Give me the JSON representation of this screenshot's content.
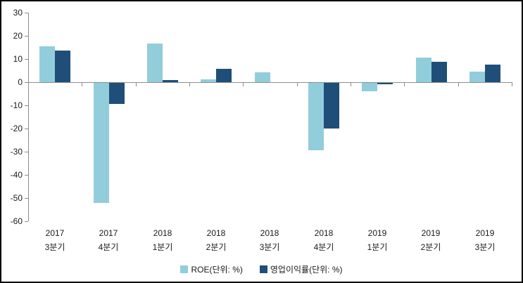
{
  "chart_data": {
    "type": "bar",
    "title": "",
    "xlabel": "",
    "ylabel": "",
    "categories": [
      {
        "line1": "2017",
        "line2": "3분기"
      },
      {
        "line1": "2017",
        "line2": "4분기"
      },
      {
        "line1": "2018",
        "line2": "1분기"
      },
      {
        "line1": "2018",
        "line2": "2분기"
      },
      {
        "line1": "2018",
        "line2": "3분기"
      },
      {
        "line1": "2018",
        "line2": "4분기"
      },
      {
        "line1": "2019",
        "line2": "1분기"
      },
      {
        "line1": "2019",
        "line2": "2분기"
      },
      {
        "line1": "2019",
        "line2": "3분기"
      }
    ],
    "series": [
      {
        "name": "ROE(단위: %)",
        "color": "#92CDDC",
        "values": [
          15.4,
          -51.9,
          16.6,
          1.2,
          4.3,
          -29.2,
          -3.6,
          10.7,
          4.6
        ]
      },
      {
        "name": "영업이익률(단위: %)",
        "color": "#1F4E79",
        "values": [
          13.5,
          -9.1,
          1.0,
          5.9,
          0,
          -19.6,
          -0.6,
          8.8,
          7.7
        ]
      }
    ],
    "ylim": [
      -60,
      30
    ],
    "yticks": [
      30,
      20,
      10,
      0,
      -10,
      -20,
      -30,
      -40,
      -50,
      -60
    ],
    "grid": false,
    "legend_position": "bottom",
    "axis_color": "#8c8c8c",
    "text_color": "#1a1a1a",
    "background_color": "#ffffff"
  }
}
